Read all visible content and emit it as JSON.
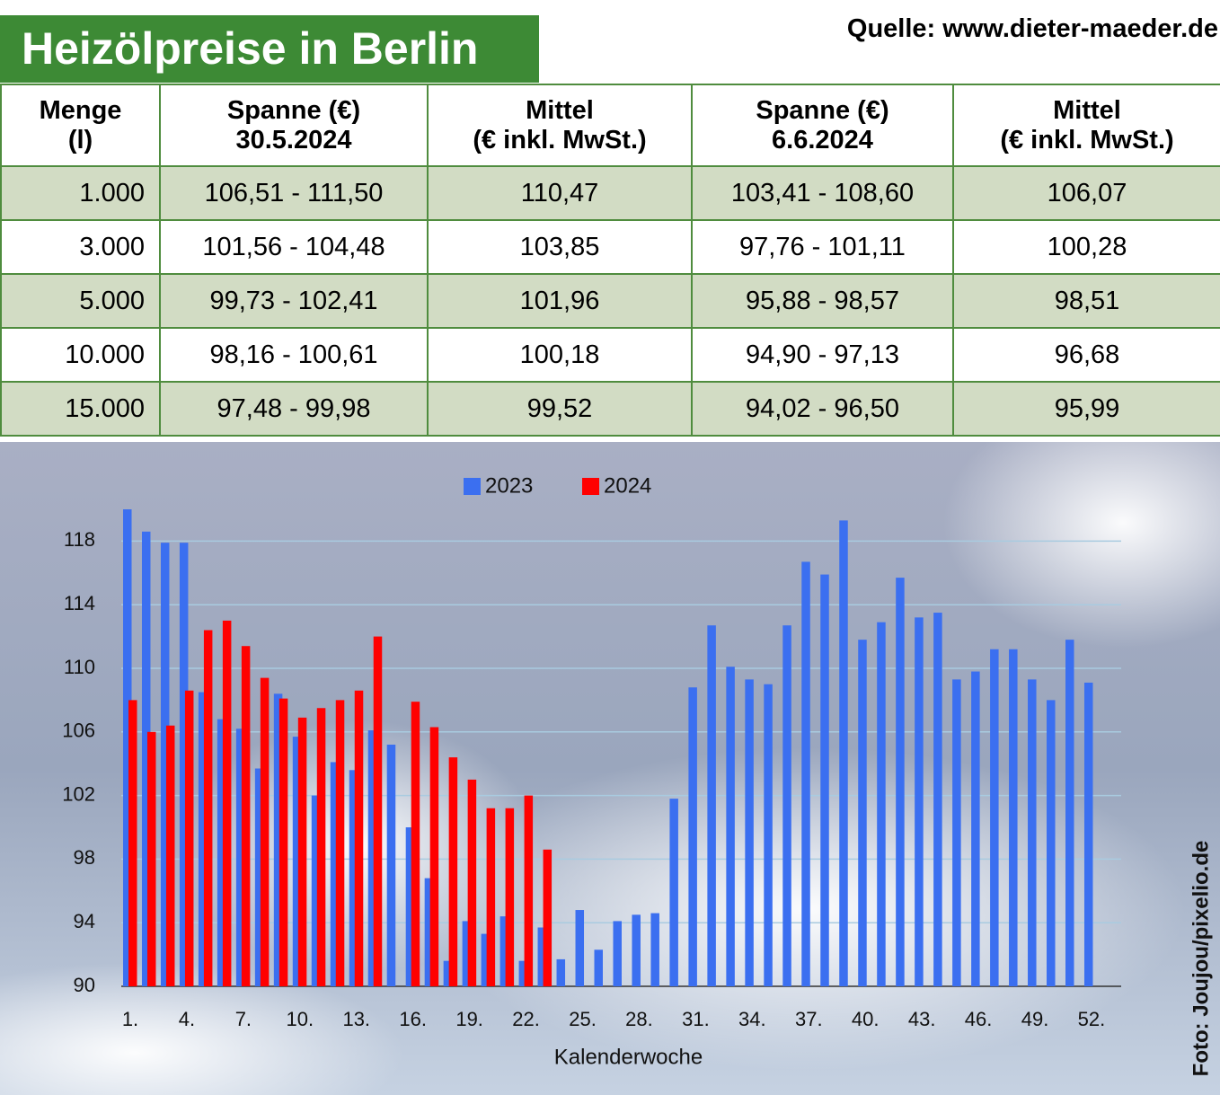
{
  "header": {
    "title": "Heizölpreise in Berlin",
    "source": "Quelle: www.dieter-maeder.de"
  },
  "table": {
    "columns": [
      [
        "Menge",
        "(l)"
      ],
      [
        "Spanne (€)",
        "30.5.2024"
      ],
      [
        "Mittel",
        "(€ inkl. MwSt.)"
      ],
      [
        "Spanne (€)",
        "6.6.2024"
      ],
      [
        "Mittel",
        "(€ inkl. MwSt.)"
      ]
    ],
    "rows": [
      [
        "1.000",
        "106,51 - 111,50",
        "110,47",
        "103,41 - 108,60",
        "106,07"
      ],
      [
        "3.000",
        "101,56 - 104,48",
        "103,85",
        "97,76 - 101,11",
        "100,28"
      ],
      [
        "5.000",
        "99,73 - 102,41",
        "101,96",
        "95,88 - 98,57",
        "98,51"
      ],
      [
        "10.000",
        "98,16 - 100,61",
        "100,18",
        "94,90 - 97,13",
        "96,68"
      ],
      [
        "15.000",
        "97,48 - 99,98",
        "99,52",
        "94,02 - 96,50",
        "95,99"
      ]
    ]
  },
  "chart_data": {
    "type": "bar",
    "x_label": "Kalenderwoche",
    "categories": [
      "1.",
      null,
      null,
      "4.",
      null,
      null,
      "7.",
      null,
      null,
      "10.",
      null,
      null,
      "13.",
      null,
      null,
      "16.",
      null,
      null,
      "19.",
      null,
      null,
      "22.",
      null,
      null,
      "25.",
      null,
      null,
      "28.",
      null,
      null,
      "31.",
      null,
      null,
      "34.",
      null,
      null,
      "37.",
      null,
      null,
      "40.",
      null,
      null,
      "43.",
      null,
      null,
      "46.",
      null,
      null,
      "49.",
      null,
      null,
      "52."
    ],
    "series": [
      {
        "name": "2023",
        "color": "#3b6ff0",
        "values": [
          120.0,
          118.6,
          117.9,
          117.9,
          108.5,
          106.8,
          106.2,
          103.7,
          108.4,
          105.7,
          102.0,
          104.1,
          103.6,
          106.1,
          105.2,
          100.0,
          96.8,
          91.6,
          94.1,
          93.3,
          94.4,
          91.6,
          93.7,
          91.7,
          94.8,
          92.3,
          94.1,
          94.5,
          94.6,
          101.8,
          108.8,
          112.7,
          110.1,
          109.3,
          109.0,
          112.7,
          116.7,
          115.9,
          119.3,
          111.8,
          112.9,
          115.7,
          113.2,
          113.5,
          109.3,
          109.8,
          111.2,
          111.2,
          109.3,
          108.0,
          111.8,
          109.1
        ]
      },
      {
        "name": "2024",
        "color": "#ff0000",
        "values": [
          108.0,
          106.0,
          106.4,
          108.6,
          112.4,
          113.0,
          111.4,
          109.4,
          108.1,
          106.9,
          107.5,
          108.0,
          108.6,
          112.0,
          null,
          107.9,
          106.3,
          104.4,
          103.0,
          101.2,
          101.2,
          102.0,
          98.6,
          null,
          null,
          null,
          null,
          null,
          null,
          null,
          null,
          null,
          null,
          null,
          null,
          null,
          null,
          null,
          null,
          null,
          null,
          null,
          null,
          null,
          null,
          null,
          null,
          null,
          null,
          null,
          null,
          null
        ]
      }
    ],
    "ylim": [
      90,
      120
    ],
    "yticks": [
      90,
      94,
      98,
      102,
      106,
      110,
      114,
      118
    ],
    "grid": true,
    "legend": "top"
  },
  "credit": "Foto: Joujou/pixelio.de"
}
